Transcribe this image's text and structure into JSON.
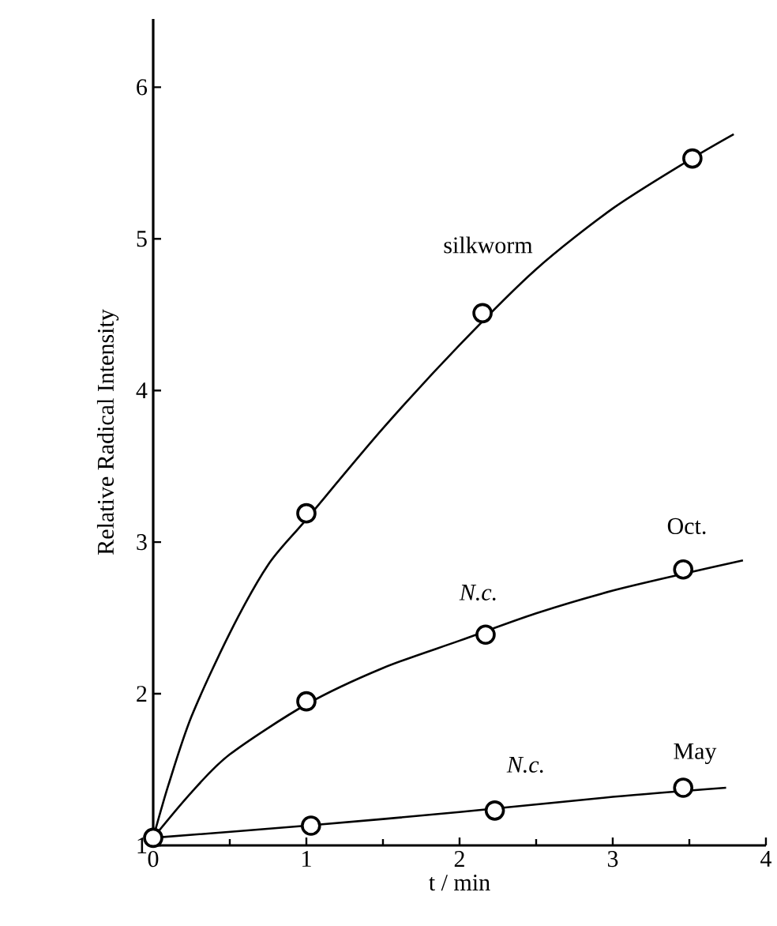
{
  "chart_data": {
    "type": "line",
    "xlabel": "t / min",
    "ylabel": "Relative Radical Intensity",
    "xlim": [
      0,
      4
    ],
    "ylim": [
      1,
      6.45
    ],
    "xticks": [
      0,
      1,
      2,
      3,
      4
    ],
    "yticks": [
      1,
      2,
      3,
      4,
      5,
      6
    ],
    "grid": false,
    "series": [
      {
        "color": "#000000",
        "marker": "none",
        "x": [
          0,
          0.1,
          0.25,
          0.5,
          0.75,
          1,
          1.5,
          2,
          2.5,
          3,
          3.5,
          3.79
        ],
        "values": [
          1.05,
          1.4,
          1.85,
          2.4,
          2.85,
          3.15,
          3.75,
          4.3,
          4.8,
          5.2,
          5.52,
          5.69
        ]
      },
      {
        "color": "#000000",
        "marker": "none",
        "x": [
          0,
          0.25,
          0.5,
          1,
          1.5,
          2,
          2.5,
          3,
          3.5,
          3.85
        ],
        "values": [
          1.05,
          1.35,
          1.6,
          1.93,
          2.17,
          2.35,
          2.53,
          2.68,
          2.8,
          2.88
        ]
      },
      {
        "color": "#000000",
        "marker": "none",
        "x": [
          0,
          1,
          2,
          3,
          3.74
        ],
        "values": [
          1.05,
          1.13,
          1.22,
          1.32,
          1.38
        ]
      },
      {
        "name": "silkworm",
        "type": "scatter",
        "color": "#000000",
        "marker": "circle",
        "x": [
          0,
          1,
          2.15,
          3.52
        ],
        "values": [
          1.05,
          3.19,
          4.51,
          5.53
        ]
      },
      {
        "name": "Oct.",
        "type": "scatter",
        "color": "#000000",
        "marker": "circle",
        "x": [
          1,
          2.17,
          3.46
        ],
        "values": [
          1.95,
          2.39,
          2.82
        ]
      },
      {
        "name": "May",
        "type": "scatter",
        "color": "#000000",
        "marker": "circle",
        "x": [
          1.03,
          2.23,
          3.46
        ],
        "values": [
          1.13,
          1.23,
          1.38
        ]
      }
    ],
    "annotations": [
      "N.c.",
      "N.c."
    ]
  }
}
